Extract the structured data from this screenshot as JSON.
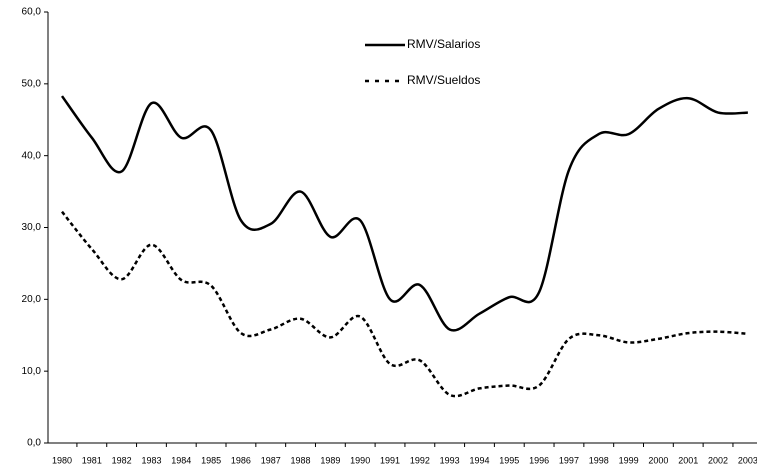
{
  "chart_data": {
    "type": "line",
    "categories": [
      "1980",
      "1981",
      "1982",
      "1983",
      "1984",
      "1985",
      "1986",
      "1987",
      "1988",
      "1989",
      "1990",
      "1991",
      "1992",
      "1993",
      "1994",
      "1995",
      "1996",
      "1997",
      "1998",
      "1999",
      "2000",
      "2001",
      "2002",
      "2003"
    ],
    "series": [
      {
        "name": "RMV/Salarios",
        "color": "#000000",
        "dash": "solid",
        "values": [
          48.3,
          42.5,
          37.8,
          47.3,
          42.5,
          43.5,
          31.0,
          30.5,
          35.0,
          28.7,
          31.0,
          20.0,
          22.0,
          15.8,
          18.0,
          20.3,
          21.0,
          38.0,
          43.0,
          43.0,
          46.5,
          48.0,
          46.0,
          46.0
        ]
      },
      {
        "name": "RMV/Sueldos",
        "color": "#000000",
        "dash": "dashed",
        "values": [
          32.2,
          27.0,
          22.8,
          27.6,
          22.7,
          21.9,
          15.3,
          15.8,
          17.3,
          14.7,
          17.6,
          11.0,
          11.5,
          6.7,
          7.6,
          8.0,
          8.0,
          14.5,
          15.0,
          14.0,
          14.5,
          15.3,
          15.5,
          15.2
        ]
      }
    ],
    "ylim": [
      0,
      60
    ],
    "yticks": [
      {
        "value": 0,
        "label": "0,0"
      },
      {
        "value": 10,
        "label": "10,0"
      },
      {
        "value": 20,
        "label": "20,0"
      },
      {
        "value": 30,
        "label": "30,0"
      },
      {
        "value": 40,
        "label": "40,0"
      },
      {
        "value": 50,
        "label": "50,0"
      },
      {
        "value": 60,
        "label": "60,0"
      }
    ],
    "grid": false
  }
}
